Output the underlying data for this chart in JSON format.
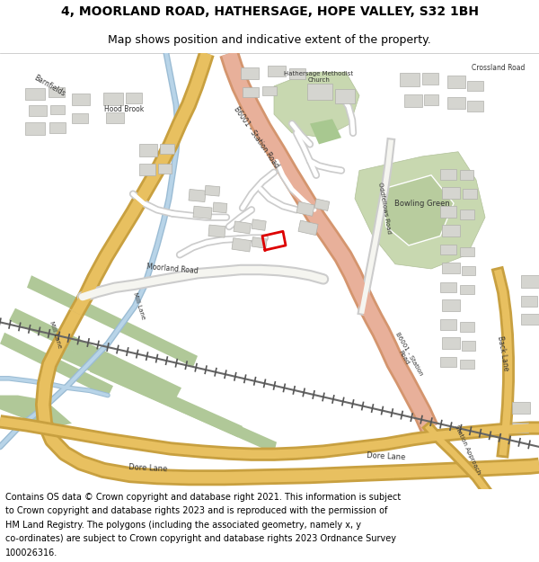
{
  "title_line1": "4, MOORLAND ROAD, HATHERSAGE, HOPE VALLEY, S32 1BH",
  "title_line2": "Map shows position and indicative extent of the property.",
  "footer_text": "Contains OS data © Crown copyright and database right 2021. This information is subject to Crown copyright and database rights 2023 and is reproduced with the permission of HM Land Registry. The polygons (including the associated geometry, namely x, y co-ordinates) are subject to Crown copyright and database rights 2023 Ordnance Survey 100026316.",
  "title_fontsize": 10,
  "subtitle_fontsize": 9,
  "footer_fontsize": 7,
  "bg_color": "#ffffff",
  "map_bg": "#f2f0eb",
  "title_color": "#000000",
  "footer_color": "#000000"
}
